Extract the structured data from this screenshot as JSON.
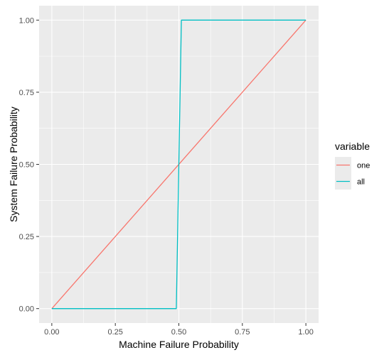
{
  "chart_data": {
    "type": "line",
    "xlabel": "Machine Failure Probability",
    "ylabel": "System Failure Probability",
    "xlim": [
      -0.05,
      1.05
    ],
    "ylim": [
      -0.05,
      1.05
    ],
    "x_ticks": [
      0.0,
      0.25,
      0.5,
      0.75,
      1.0
    ],
    "x_tick_labels": [
      "0.00",
      "0.25",
      "0.50",
      "0.75",
      "1.00"
    ],
    "y_ticks": [
      0.0,
      0.25,
      0.5,
      0.75,
      1.0
    ],
    "y_tick_labels": [
      "0.00",
      "0.25",
      "0.50",
      "0.75",
      "1.00"
    ],
    "grid": true,
    "legend": {
      "title": "variable",
      "position": "right"
    },
    "series": [
      {
        "name": "one",
        "color": "#F8766D",
        "x": [
          0.0,
          1.0
        ],
        "y": [
          0.0,
          1.0
        ]
      },
      {
        "name": "all",
        "color": "#00BFC4",
        "x": [
          0.0,
          0.49,
          0.51,
          1.0
        ],
        "y": [
          0.0,
          0.0,
          1.0,
          1.0
        ]
      }
    ],
    "colors": {
      "panel_background": "#EBEBEB",
      "grid": "#FFFFFF",
      "tick": "#333333"
    }
  }
}
